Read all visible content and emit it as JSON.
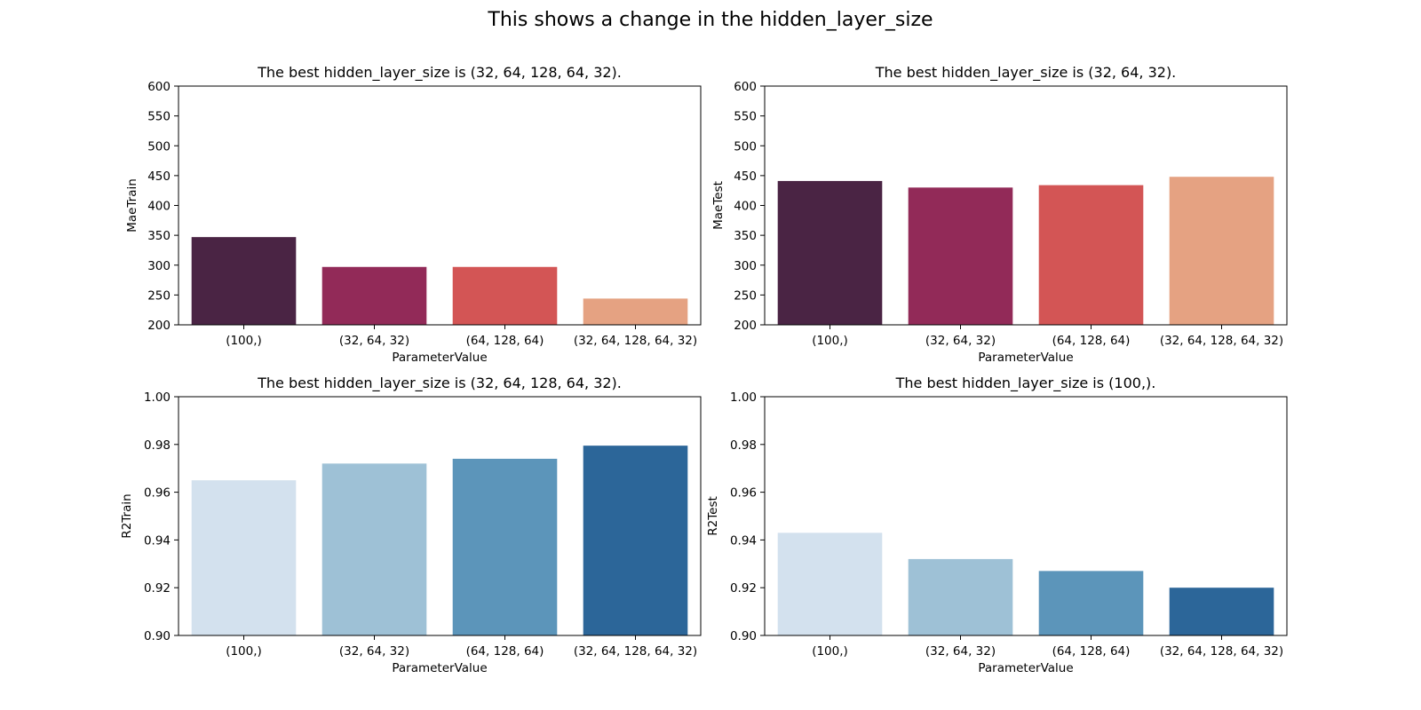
{
  "suptitle": "This shows a change in the hidden_layer_size",
  "chart_data": [
    {
      "type": "bar",
      "title": "The best hidden_layer_size is (32, 64, 128, 64, 32).",
      "xlabel": "ParameterValue",
      "ylabel": "MaeTrain",
      "ylim": [
        200,
        600
      ],
      "yticks": [
        "200",
        "250",
        "300",
        "350",
        "400",
        "450",
        "500",
        "550",
        "600"
      ],
      "categories": [
        "(100,)",
        "(32, 64, 32)",
        "(64, 128, 64)",
        "(32, 64, 128, 64, 32)"
      ],
      "values": [
        347,
        297,
        297,
        244
      ],
      "colors": [
        "#4a2444",
        "#922a58",
        "#d35555",
        "#e5a282"
      ]
    },
    {
      "type": "bar",
      "title": "The best hidden_layer_size is (32, 64, 32).",
      "xlabel": "ParameterValue",
      "ylabel": "MaeTest",
      "ylim": [
        200,
        600
      ],
      "yticks": [
        "200",
        "250",
        "300",
        "350",
        "400",
        "450",
        "500",
        "550",
        "600"
      ],
      "categories": [
        "(100,)",
        "(32, 64, 32)",
        "(64, 128, 64)",
        "(32, 64, 128, 64, 32)"
      ],
      "values": [
        441,
        430,
        434,
        448
      ],
      "colors": [
        "#4a2444",
        "#922a58",
        "#d35555",
        "#e5a282"
      ]
    },
    {
      "type": "bar",
      "title": "The best hidden_layer_size is (32, 64, 128, 64, 32).",
      "xlabel": "ParameterValue",
      "ylabel": "R2Train",
      "ylim": [
        0.9,
        1.0
      ],
      "yticks": [
        "0.90",
        "0.92",
        "0.94",
        "0.96",
        "0.98",
        "1.00"
      ],
      "categories": [
        "(100,)",
        "(32, 64, 32)",
        "(64, 128, 64)",
        "(32, 64, 128, 64, 32)"
      ],
      "values": [
        0.965,
        0.972,
        0.974,
        0.9795
      ],
      "colors": [
        "#d3e1ee",
        "#9ec1d6",
        "#5c95ba",
        "#2c6699"
      ]
    },
    {
      "type": "bar",
      "title": "The best hidden_layer_size is (100,).",
      "xlabel": "ParameterValue",
      "ylabel": "R2Test",
      "ylim": [
        0.9,
        1.0
      ],
      "yticks": [
        "0.90",
        "0.92",
        "0.94",
        "0.96",
        "0.98",
        "1.00"
      ],
      "categories": [
        "(100,)",
        "(32, 64, 32)",
        "(64, 128, 64)",
        "(32, 64, 128, 64, 32)"
      ],
      "values": [
        0.943,
        0.932,
        0.927,
        0.92
      ],
      "colors": [
        "#d3e1ee",
        "#9ec1d6",
        "#5c95ba",
        "#2c6699"
      ]
    }
  ]
}
